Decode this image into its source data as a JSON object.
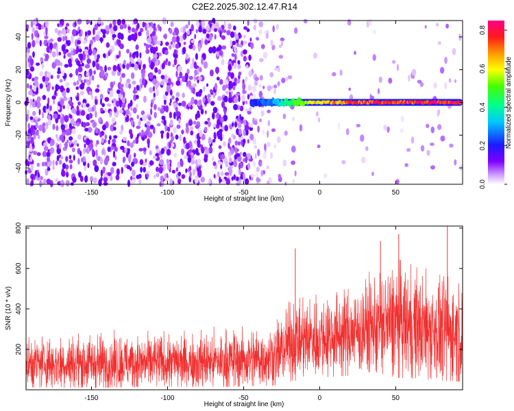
{
  "title": "C2E2.2025.302.12.47.R14",
  "chart_data": [
    {
      "type": "heatmap",
      "xlabel": "Height of straight line (km)",
      "ylabel": "Frequency (Hz)",
      "xlim": [
        -193,
        94
      ],
      "ylim": [
        -50,
        50
      ],
      "xticks": [
        -150,
        -100,
        -50,
        0,
        50
      ],
      "yticks": [
        -40,
        -20,
        0,
        20,
        40
      ],
      "colorbar": {
        "label": "Normalized spectral amplitude",
        "range": [
          0,
          0.85
        ],
        "ticks": [
          0.0,
          0.2,
          0.4,
          0.6,
          0.8
        ],
        "colormap": "rainbow (white, violet, blue, cyan, green, yellow, orange, red, magenta)"
      },
      "description_values": {
        "noise_dense_region_x": [
          -193,
          -45
        ],
        "noise_sparse_region_x": [
          -45,
          94
        ],
        "signal_line_frequency_hz": 0,
        "signal_start_x": -45,
        "signal_amplitude_by_x": [
          {
            "x": -45,
            "amp": 0.2
          },
          {
            "x": -30,
            "amp": 0.3
          },
          {
            "x": -15,
            "amp": 0.5
          },
          {
            "x": 0,
            "amp": 0.65
          },
          {
            "x": 20,
            "amp": 0.75
          },
          {
            "x": 50,
            "amp": 0.8
          },
          {
            "x": 90,
            "amp": 0.8
          }
        ]
      }
    },
    {
      "type": "line",
      "xlabel": "Height of straight line (km)",
      "ylabel": "SNR (10 * v/v)",
      "xlim": [
        -193,
        94
      ],
      "ylim": [
        0,
        810
      ],
      "xticks": [
        -150,
        -100,
        -50,
        0,
        50
      ],
      "yticks": [
        200,
        400,
        600,
        800
      ],
      "series": [
        {
          "color": "#f03030",
          "envelope": [
            {
              "x": -193,
              "low": 10,
              "mid": 130,
              "high": 270
            },
            {
              "x": -150,
              "low": 10,
              "mid": 130,
              "high": 300
            },
            {
              "x": -100,
              "low": 15,
              "mid": 135,
              "high": 290
            },
            {
              "x": -60,
              "low": 15,
              "mid": 140,
              "high": 320
            },
            {
              "x": -30,
              "low": 20,
              "mid": 160,
              "high": 330
            },
            {
              "x": -20,
              "low": 40,
              "mid": 230,
              "high": 440
            },
            {
              "x": 0,
              "low": 60,
              "mid": 260,
              "high": 480
            },
            {
              "x": 20,
              "low": 70,
              "mid": 280,
              "high": 500
            },
            {
              "x": 35,
              "low": 90,
              "mid": 310,
              "high": 600
            },
            {
              "x": 50,
              "low": 60,
              "mid": 330,
              "high": 650
            },
            {
              "x": 70,
              "low": 50,
              "mid": 300,
              "high": 600
            },
            {
              "x": 94,
              "low": 40,
              "mid": 280,
              "high": 580
            }
          ],
          "peaks": [
            {
              "x": -16,
              "y": 700
            },
            {
              "x": 40,
              "y": 735
            },
            {
              "x": 52,
              "y": 770
            },
            {
              "x": 84,
              "y": 810
            }
          ]
        }
      ]
    }
  ]
}
